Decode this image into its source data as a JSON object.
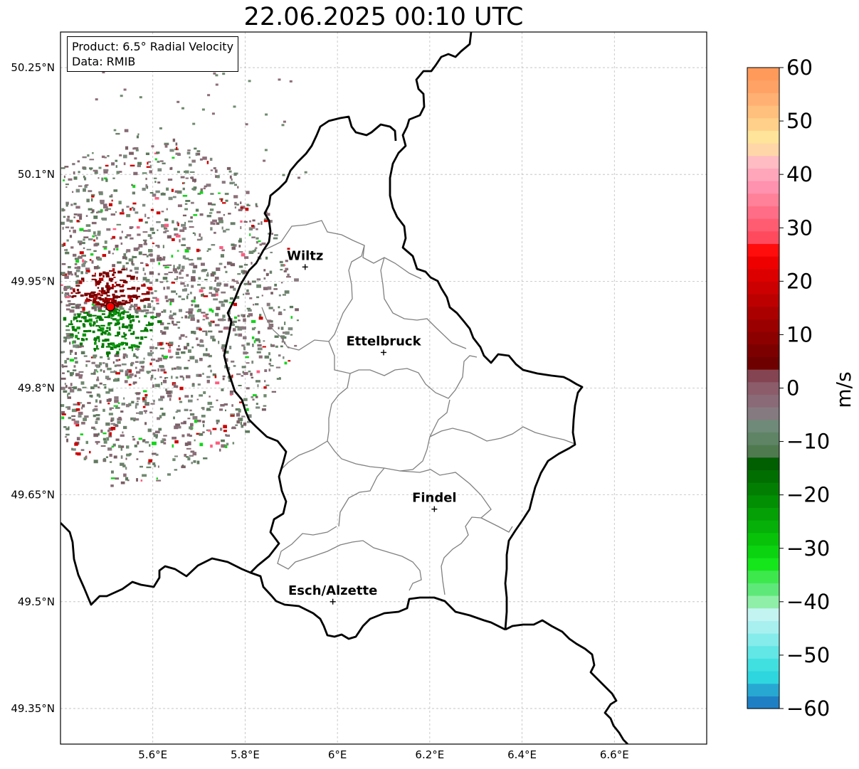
{
  "title": "22.06.2025 00:10 UTC",
  "info": {
    "product": "Product: 6.5° Radial Velocity",
    "source": "Data: RMIB"
  },
  "map": {
    "lon_range": [
      5.4,
      6.8
    ],
    "lat_range": [
      49.3,
      50.3
    ],
    "lon_ticks": [
      "5.6°E",
      "5.8°E",
      "6°E",
      "6.2°E",
      "6.4°E",
      "6.6°E"
    ],
    "lat_ticks": [
      "50.25°N",
      "50.1°N",
      "49.95°N",
      "49.8°N",
      "49.65°N",
      "49.5°N",
      "49.35°N"
    ],
    "grid": true,
    "radar_site_color": "#ff0000",
    "cities": [
      {
        "name": "Wiltz",
        "lon": 5.93,
        "lat": 49.97
      },
      {
        "name": "Ettelbruck",
        "lon": 6.1,
        "lat": 49.85
      },
      {
        "name": "Findel",
        "lon": 6.21,
        "lat": 49.63
      },
      {
        "name": "Esch/Alzette",
        "lon": 5.99,
        "lat": 49.5
      }
    ]
  },
  "colorbar": {
    "label": "m/s",
    "min": -60,
    "max": 60,
    "ticks": [
      "60",
      "50",
      "40",
      "30",
      "20",
      "10",
      "0",
      "−10",
      "−20",
      "−30",
      "−40",
      "−50",
      "−60"
    ],
    "colors_bottom_to_top": [
      "#1f7fc4",
      "#27a8d2",
      "#2ed6df",
      "#41e0e0",
      "#62e6e6",
      "#86ebeb",
      "#a8f0f0",
      "#c4f4f2",
      "#8fefa8",
      "#5ee879",
      "#3de84d",
      "#15e51b",
      "#0bd30f",
      "#08c20a",
      "#06b008",
      "#04a006",
      "#038f04",
      "#027f03",
      "#016e02",
      "#015e01",
      "#4f7a4f",
      "#5e8465",
      "#6f8a78",
      "#857a80",
      "#8b6a78",
      "#8c5c6a",
      "#854452",
      "#6e0000",
      "#7d0000",
      "#8c0000",
      "#9b0000",
      "#ab0000",
      "#bc0000",
      "#cc0000",
      "#dc0000",
      "#ee0000",
      "#ff0d0d",
      "#ff4a5e",
      "#ff5c72",
      "#ff6e86",
      "#ff8099",
      "#ff92ae",
      "#ffa6bb",
      "#ffbcc3",
      "#ffd6a8",
      "#ffe49a",
      "#ffd08a",
      "#ffc07d",
      "#ffb072",
      "#ffa266",
      "#ff9a5a"
    ]
  }
}
